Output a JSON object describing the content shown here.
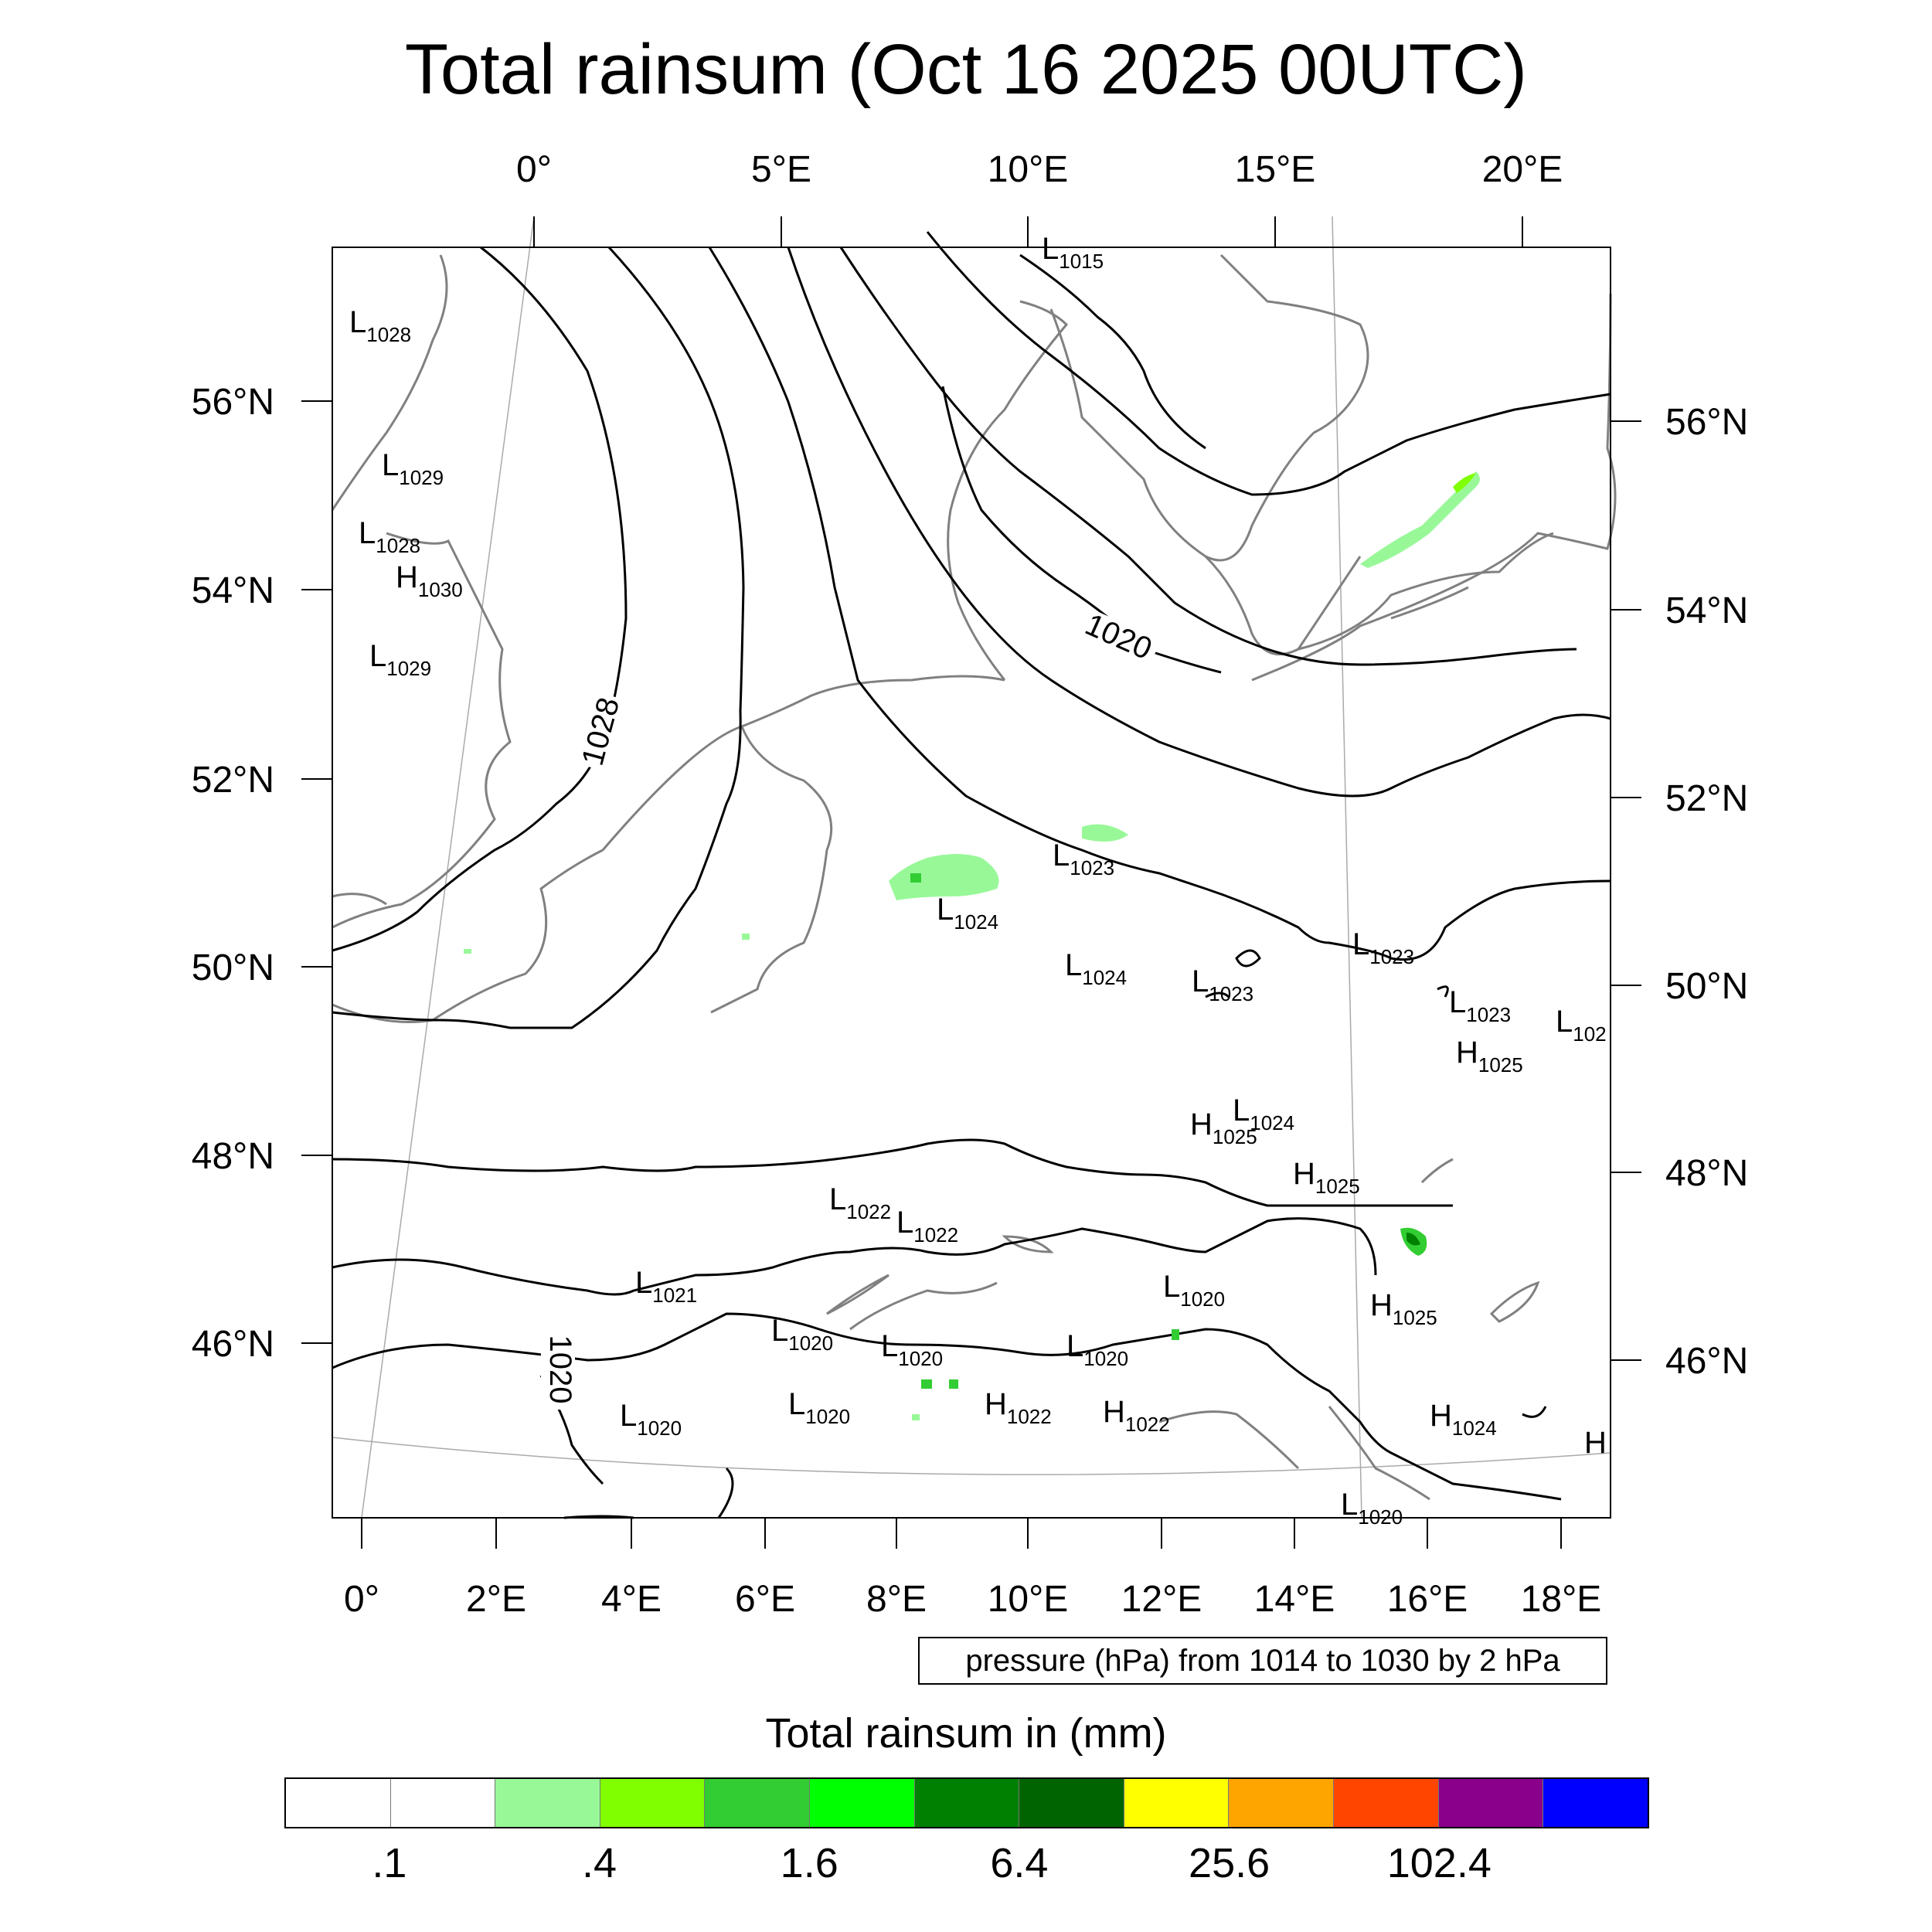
{
  "title": "Total rainsum (Oct 16 2025 00UTC)",
  "top_lon_labels": [
    "0°",
    "5°E",
    "10°E",
    "15°E",
    "20°E"
  ],
  "bottom_lon_labels": [
    "0°",
    "2°E",
    "4°E",
    "6°E",
    "8°E",
    "10°E",
    "12°E",
    "14°E",
    "16°E",
    "18°E"
  ],
  "left_lat_labels": [
    "56°N",
    "54°N",
    "52°N",
    "50°N",
    "48°N",
    "46°N"
  ],
  "right_lat_labels": [
    "56°N",
    "54°N",
    "52°N",
    "50°N",
    "48°N",
    "46°N"
  ],
  "contour_labels": [
    "1028",
    "1020",
    "1020"
  ],
  "pressure_centers": [
    {
      "t": "L",
      "v": "1015"
    },
    {
      "t": "L",
      "v": "1028"
    },
    {
      "t": "L",
      "v": "1029"
    },
    {
      "t": "L",
      "v": "1028"
    },
    {
      "t": "H",
      "v": "1030"
    },
    {
      "t": "L",
      "v": "1029"
    },
    {
      "t": "L",
      "v": "1023"
    },
    {
      "t": "L",
      "v": "1024"
    },
    {
      "t": "L",
      "v": "1024"
    },
    {
      "t": "L",
      "v": "1023"
    },
    {
      "t": "L",
      "v": "1023"
    },
    {
      "t": "L",
      "v": "1023"
    },
    {
      "t": "L",
      "v": "102"
    },
    {
      "t": "H",
      "v": "1025"
    },
    {
      "t": "H",
      "v": "1025"
    },
    {
      "t": "L",
      "v": "1024"
    },
    {
      "t": "H",
      "v": "1025"
    },
    {
      "t": "L",
      "v": "1022"
    },
    {
      "t": "L",
      "v": "1022"
    },
    {
      "t": "L",
      "v": "1021"
    },
    {
      "t": "L",
      "v": "1020"
    },
    {
      "t": "H",
      "v": "1025"
    },
    {
      "t": "L",
      "v": "1020"
    },
    {
      "t": "L",
      "v": "1020"
    },
    {
      "t": "L",
      "v": "1020"
    },
    {
      "t": "H",
      "v": "1022"
    },
    {
      "t": "H",
      "v": "1022"
    },
    {
      "t": "L",
      "v": "1020"
    },
    {
      "t": "L",
      "v": "1020"
    },
    {
      "t": "H",
      "v": "1024"
    },
    {
      "t": "H",
      "v": ""
    },
    {
      "t": "L",
      "v": "1020"
    }
  ],
  "contour_info": "pressure (hPa) from 1014 to 1030 by 2 hPa",
  "colorbar": {
    "title": "Total rainsum in (mm)",
    "colors": [
      "#ffffff",
      "#ffffff",
      "#98f898",
      "#80ff00",
      "#32cd32",
      "#00ff00",
      "#008000",
      "#006400",
      "#ffff00",
      "#ffa500",
      "#ff4500",
      "#8b008b",
      "#0000ff"
    ],
    "labels": [
      ".1",
      ".4",
      "1.6",
      "6.4",
      "25.6",
      "102.4"
    ]
  }
}
